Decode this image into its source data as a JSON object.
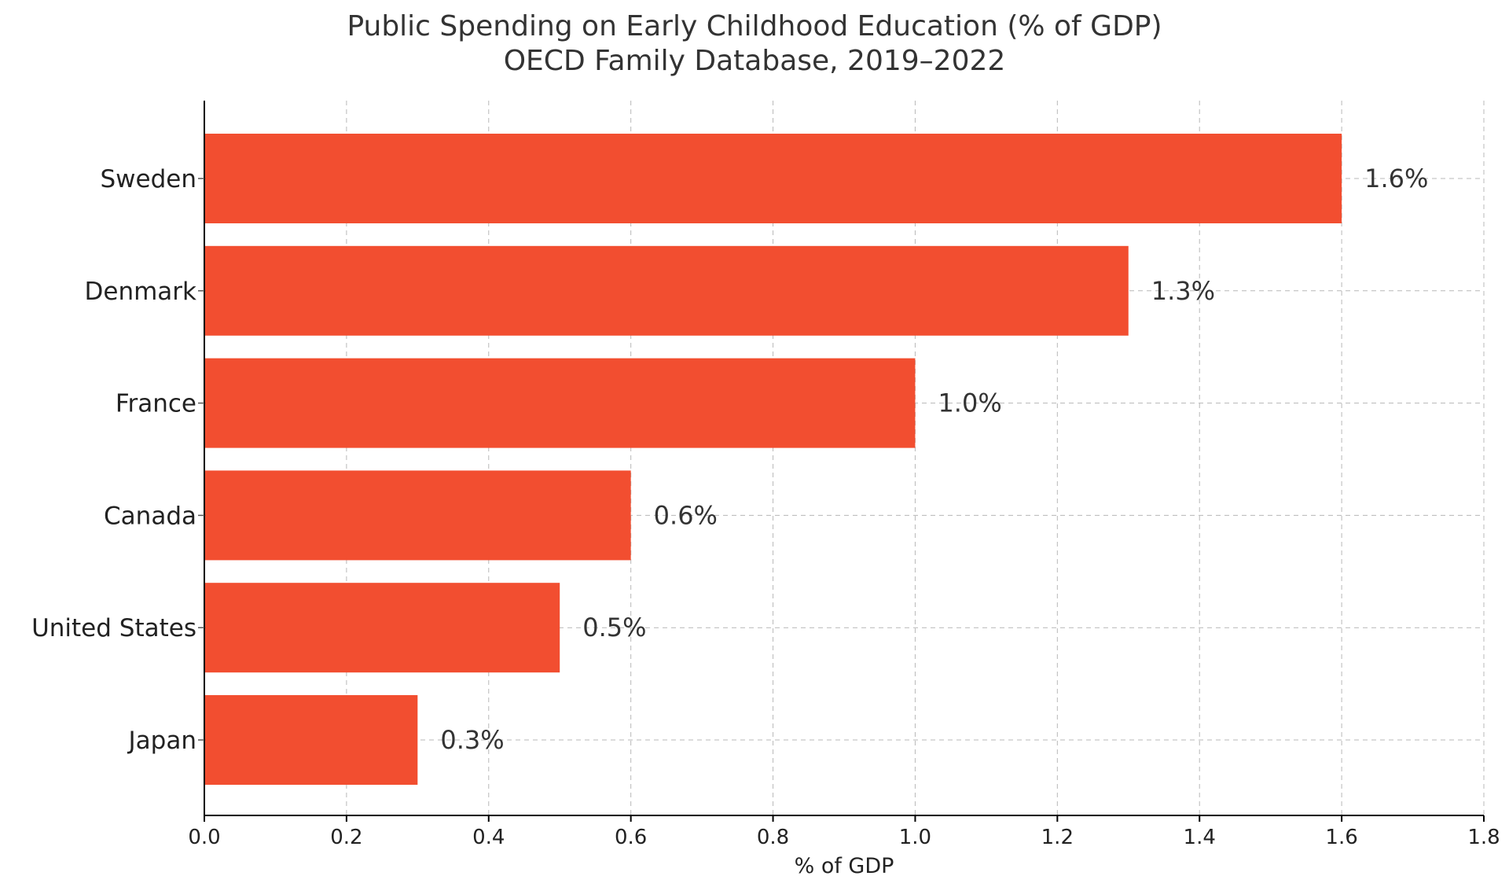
{
  "chart_data": {
    "type": "bar",
    "orientation": "horizontal",
    "title": "Public Spending on Early Childhood Education (% of GDP)",
    "subtitle": "OECD Family Database, 2019–2022",
    "xlabel": "% of GDP",
    "ylabel": "",
    "categories": [
      "Sweden",
      "Denmark",
      "France",
      "Canada",
      "United States",
      "Japan"
    ],
    "values": [
      1.6,
      1.3,
      1.0,
      0.6,
      0.5,
      0.3
    ],
    "data_labels": [
      "1.6%",
      "1.3%",
      "1.0%",
      "0.6%",
      "0.5%",
      "0.3%"
    ],
    "xlim": [
      0,
      1.8
    ],
    "xticks": [
      0.0,
      0.2,
      0.4,
      0.6,
      0.8,
      1.0,
      1.2,
      1.4,
      1.6,
      1.8
    ],
    "xtick_labels": [
      "0.0",
      "0.2",
      "0.4",
      "0.6",
      "0.8",
      "1.0",
      "1.2",
      "1.4",
      "1.6",
      "1.8"
    ],
    "grid": true,
    "legend": "none",
    "colors": {
      "bar": "#f24e30",
      "grid": "#b8b8b8",
      "axis": "#000000",
      "text": "#333333"
    }
  }
}
